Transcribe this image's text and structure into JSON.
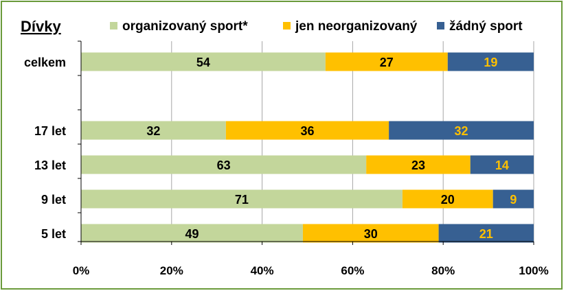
{
  "chart_data": {
    "type": "bar",
    "orientation": "horizontal",
    "stacked": true,
    "title": "Dívky",
    "categories": [
      "celkem",
      "",
      "17 let",
      "13 let",
      "9 let",
      "5 let"
    ],
    "series": [
      {
        "name": "organizovaný sport*",
        "values": [
          54,
          null,
          32,
          63,
          71,
          49
        ],
        "color": "#c3d69b",
        "label_color": "#000000"
      },
      {
        "name": "jen neorganizovaný",
        "values": [
          27,
          null,
          36,
          23,
          20,
          30
        ],
        "color": "#ffc000",
        "label_color": "#000000"
      },
      {
        "name": "žádný sport",
        "values": [
          19,
          null,
          32,
          14,
          9,
          21
        ],
        "color": "#376092",
        "label_color": "#ffc000"
      }
    ],
    "xlim": [
      0,
      100
    ],
    "x_ticks": [
      "0%",
      "20%",
      "40%",
      "60%",
      "80%",
      "100%"
    ],
    "grid": true,
    "legend_position": "top"
  },
  "colors": {
    "border": "#6a9a3a",
    "grid": "#a6a6a6",
    "axis": "#000000"
  }
}
